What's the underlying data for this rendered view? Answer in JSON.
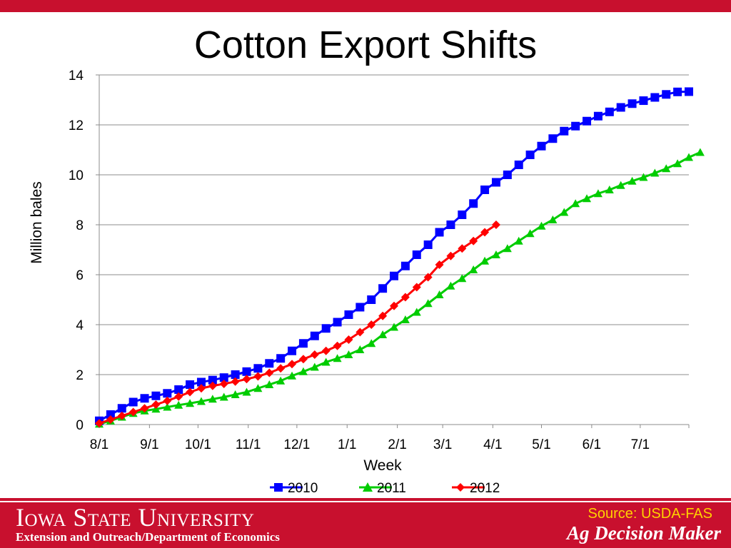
{
  "slide": {
    "title": "Cotton Export Shifts"
  },
  "footer": {
    "university": "Iowa State University",
    "department": "Extension and Outreach/Department of Economics",
    "source": "Source: USDA-FAS",
    "brand": "Ag Decision Maker"
  },
  "colors": {
    "accent": "#c8102e",
    "source_text": "#ffd200",
    "series_2010": "#0000ff",
    "series_2011": "#00cc00",
    "series_2012": "#ff0000"
  },
  "chart_data": {
    "type": "line",
    "xlabel": "Week",
    "ylabel": "Million bales",
    "ylim": [
      0,
      14
    ],
    "yticks": [
      0,
      2,
      4,
      6,
      8,
      10,
      12,
      14
    ],
    "xlim": [
      0,
      52
    ],
    "xticks": [
      {
        "label": "8/1",
        "week": 0
      },
      {
        "label": "9/1",
        "week": 4.43
      },
      {
        "label": "10/1",
        "week": 8.71
      },
      {
        "label": "11/1",
        "week": 13.14
      },
      {
        "label": "12/1",
        "week": 17.43
      },
      {
        "label": "1/1",
        "week": 21.86
      },
      {
        "label": "2/1",
        "week": 26.29
      },
      {
        "label": "3/1",
        "week": 30.29
      },
      {
        "label": "4/1",
        "week": 34.71
      },
      {
        "label": "5/1",
        "week": 39
      },
      {
        "label": "6/1",
        "week": 43.43
      },
      {
        "label": "7/1",
        "week": 47.71
      }
    ],
    "grid": true,
    "legend_position": "bottom",
    "series": [
      {
        "name": "2010",
        "marker": "square",
        "color": "#0000ff",
        "values": [
          0.15,
          0.4,
          0.65,
          0.9,
          1.05,
          1.15,
          1.25,
          1.4,
          1.6,
          1.7,
          1.78,
          1.88,
          2.0,
          2.12,
          2.25,
          2.45,
          2.65,
          2.95,
          3.25,
          3.55,
          3.85,
          4.1,
          4.4,
          4.7,
          5.0,
          5.45,
          5.95,
          6.35,
          6.8,
          7.2,
          7.7,
          8.0,
          8.4,
          8.85,
          9.4,
          9.7,
          10.0,
          10.4,
          10.8,
          11.15,
          11.45,
          11.75,
          11.95,
          12.15,
          12.35,
          12.52,
          12.7,
          12.85,
          12.97,
          13.1,
          13.22,
          13.32,
          13.33
        ]
      },
      {
        "name": "2011",
        "marker": "triangle",
        "color": "#00cc00",
        "values": [
          0.02,
          0.15,
          0.3,
          0.45,
          0.55,
          0.62,
          0.7,
          0.78,
          0.85,
          0.93,
          1.02,
          1.1,
          1.2,
          1.3,
          1.45,
          1.6,
          1.75,
          1.95,
          2.12,
          2.3,
          2.5,
          2.65,
          2.8,
          3.0,
          3.25,
          3.6,
          3.9,
          4.2,
          4.5,
          4.85,
          5.2,
          5.55,
          5.85,
          6.2,
          6.55,
          6.8,
          7.05,
          7.35,
          7.65,
          7.95,
          8.2,
          8.5,
          8.85,
          9.05,
          9.25,
          9.4,
          9.58,
          9.75,
          9.9,
          10.07,
          10.25,
          10.45,
          10.7,
          10.9
        ]
      },
      {
        "name": "2012",
        "marker": "diamond",
        "color": "#ff0000",
        "values": [
          0.05,
          0.2,
          0.35,
          0.5,
          0.65,
          0.8,
          0.95,
          1.12,
          1.3,
          1.45,
          1.55,
          1.63,
          1.72,
          1.82,
          1.93,
          2.07,
          2.25,
          2.42,
          2.62,
          2.8,
          2.95,
          3.15,
          3.4,
          3.7,
          4.0,
          4.35,
          4.75,
          5.1,
          5.5,
          5.9,
          6.4,
          6.75,
          7.05,
          7.35,
          7.7,
          8.0
        ]
      }
    ]
  }
}
